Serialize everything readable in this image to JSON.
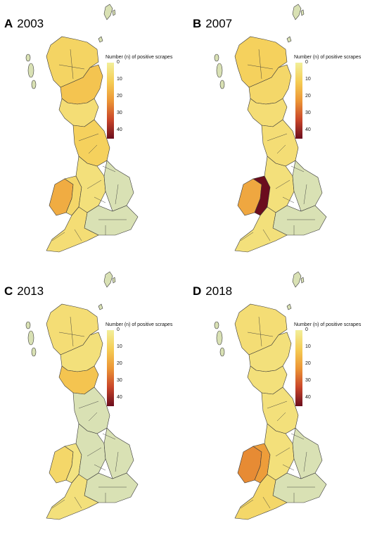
{
  "legend": {
    "title": "Number (n) of positive scrapes",
    "ticks": [
      "0",
      "10",
      "20",
      "30",
      "40"
    ],
    "scale_colors": [
      "#f2ef9a",
      "#f5cd55",
      "#ec9636",
      "#c9462a",
      "#6b0d1e"
    ]
  },
  "colors": {
    "border": "#3a3a3a",
    "zero_fill": "#d9e1b4",
    "water": "#ffffff"
  },
  "panels": [
    {
      "letter": "A",
      "year": "2003",
      "region_values": {
        "n_scotland": 9,
        "c_scotland": 13,
        "s_scotland": 6,
        "n_england": 10,
        "midlands": 5,
        "wales_west": 18,
        "wales_east": 8,
        "sw_england": 6,
        "e_england": 0,
        "se_england": 0,
        "islands": 0
      }
    },
    {
      "letter": "B",
      "year": "2007",
      "region_values": {
        "n_scotland": 10,
        "c_scotland": 8,
        "s_scotland": 6,
        "n_england": 6,
        "midlands": 5,
        "wales_west": 19,
        "wales_east": 45,
        "sw_england": 5,
        "e_england": 0,
        "se_england": 0,
        "islands": 0
      }
    },
    {
      "letter": "C",
      "year": "2013",
      "region_values": {
        "n_scotland": 6,
        "c_scotland": 5,
        "s_scotland": 13,
        "n_england": 0,
        "midlands": 0,
        "wales_west": 8,
        "wales_east": 4,
        "sw_england": 5,
        "e_england": 0,
        "se_england": 0,
        "islands": 0
      }
    },
    {
      "letter": "D",
      "year": "2018",
      "region_values": {
        "n_scotland": 6,
        "c_scotland": 5,
        "s_scotland": 5,
        "n_england": 5,
        "midlands": 5,
        "wales_west": 24,
        "wales_east": 21,
        "sw_england": 8,
        "e_england": 0,
        "se_england": 0,
        "islands": 0
      }
    }
  ]
}
